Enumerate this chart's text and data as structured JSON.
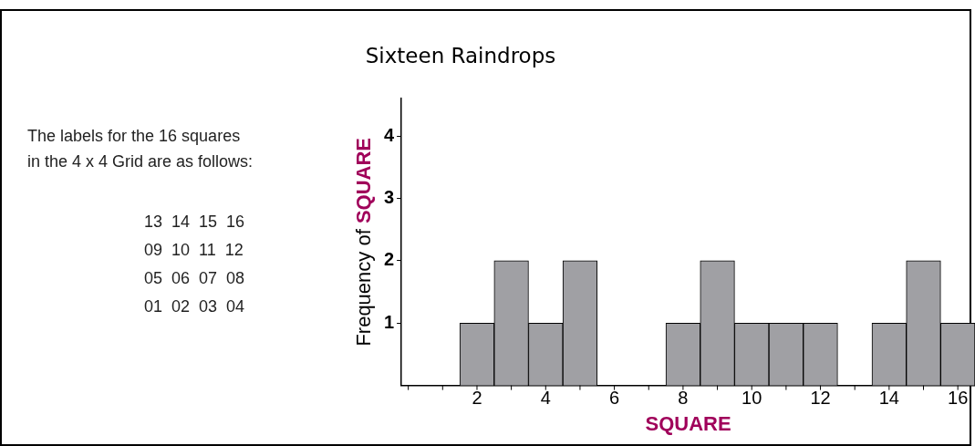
{
  "chart_data": {
    "type": "histogram",
    "title": "Sixteen Raindrops",
    "xlabel": "SQUARE",
    "ylabel": "Frequency of SQUARE",
    "bins": [
      0.5,
      1.5,
      2.5,
      3.5,
      4.5,
      5.5,
      6.5,
      7.5,
      8.5,
      9.5,
      10.5,
      11.5,
      12.5,
      13.5,
      14.5,
      15.5,
      16.5
    ],
    "values": [
      0,
      1,
      2,
      1,
      2,
      0,
      0,
      1,
      2,
      1,
      1,
      1,
      0,
      1,
      2,
      1
    ],
    "color": "#a0a0a4",
    "xlim": [
      -0.2,
      16.5
    ],
    "xticks": [
      {
        "value": 0,
        "label": null
      },
      {
        "value": 1,
        "label": null
      },
      2,
      {
        "value": 3,
        "label": null
      },
      4,
      {
        "value": 5,
        "label": null
      },
      6,
      {
        "value": 7,
        "label": null
      },
      8,
      {
        "value": 9,
        "label": null
      },
      10,
      {
        "value": 11,
        "label": null
      },
      12,
      {
        "value": 13,
        "label": null
      },
      14,
      {
        "value": 15,
        "label": null
      },
      16
    ],
    "ylim": [
      0,
      4.6
    ],
    "yticks": [
      1,
      2,
      3,
      4
    ],
    "grid": false,
    "legend": false,
    "annotations": [
      "The labels for the 16 squares\nin the 4 x 4 Grid are as follows:",
      "13  14  15  16\n09  10  11  12\n05  06  07  08\n01  02  03  04"
    ]
  }
}
